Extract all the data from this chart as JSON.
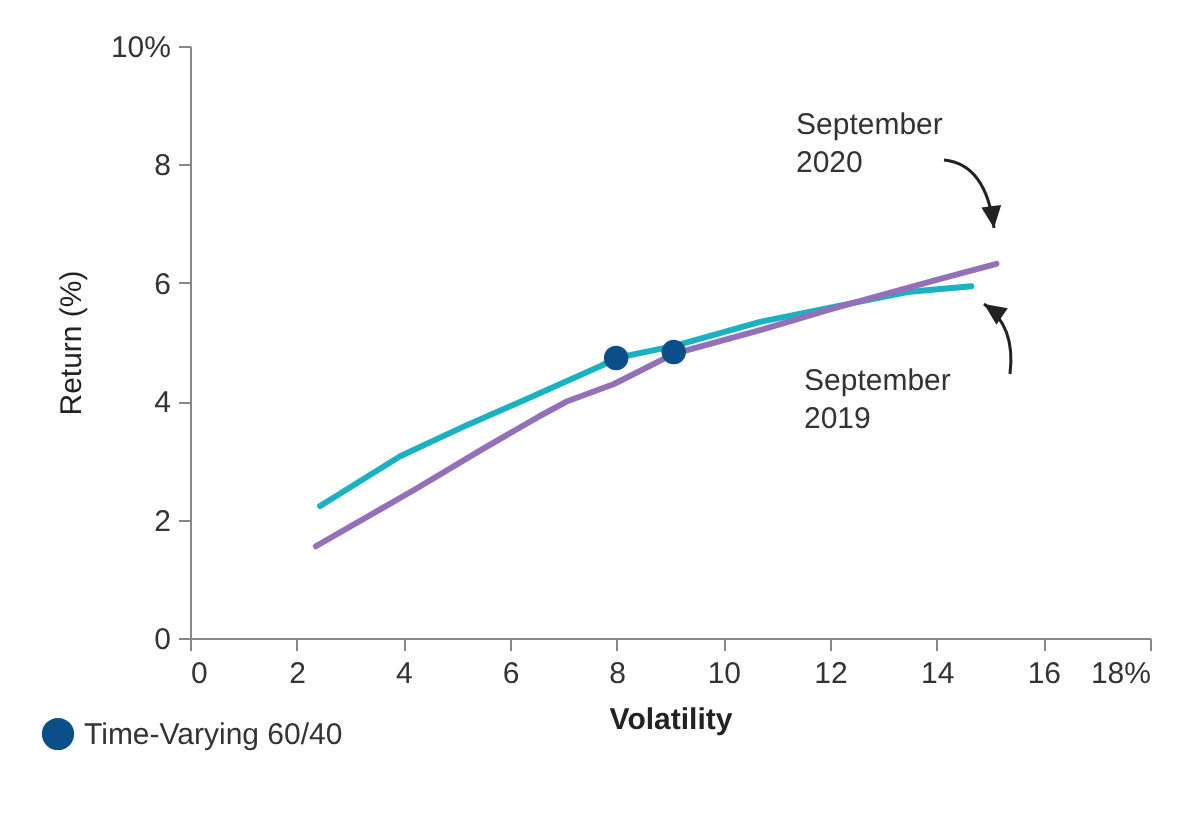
{
  "chart_data": {
    "type": "line",
    "xlabel": "Volatility",
    "ylabel": "Return (%)",
    "xlim": [
      0,
      18
    ],
    "xticks": [
      0,
      2,
      4,
      6,
      8,
      10,
      12,
      14,
      16,
      {
        "value": 18,
        "label": "18%"
      }
    ],
    "ylim": [
      0,
      10
    ],
    "yticks": [
      0,
      2,
      4,
      6,
      8,
      {
        "value": 10,
        "label": "10%"
      }
    ],
    "grid": false,
    "legend": "bottom left",
    "series": [
      {
        "color": "#1ab2c2",
        "x": [
          2.44,
          3.94,
          5.2,
          6.45,
          7.69,
          7.99,
          9.07,
          10.69,
          12.0,
          13.5,
          14.65
        ],
        "values": [
          2.23,
          3.07,
          3.6,
          4.09,
          4.59,
          4.73,
          4.93,
          5.34,
          5.58,
          5.85,
          5.94
        ]
      },
      {
        "color": "#9470b8",
        "x": [
          2.36,
          4.2,
          5.5,
          6.56,
          7.05,
          7.95,
          9.07,
          10.69,
          12.0,
          14.0,
          15.12
        ],
        "values": [
          1.55,
          2.5,
          3.2,
          3.75,
          3.99,
          4.29,
          4.8,
          5.2,
          5.55,
          6.05,
          6.32
        ]
      },
      {
        "type": "scatter",
        "name": "Time-Varying 60/40",
        "color": "#0b4f8a",
        "marker": "circle",
        "x": [
          7.99,
          9.07
        ],
        "values": [
          4.73,
          4.83
        ]
      }
    ],
    "annotations": [
      "September 2020",
      "September 2019"
    ]
  }
}
